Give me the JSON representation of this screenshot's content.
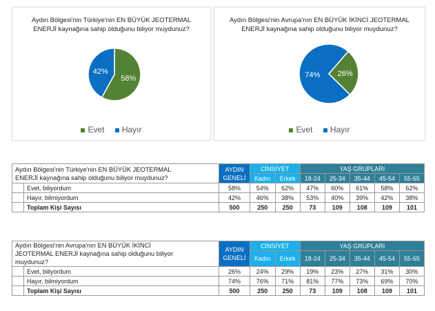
{
  "chart_data": [
    {
      "type": "pie",
      "title": "Aydın Bölgesi'nin Türkiye'nin EN BÜYÜK JEOTERMAL ENERJİ kaynağına sahip olduğunu biliyor muydunuz?",
      "title_lines": [
        "Aydın Bölgesi'nin Türkiye'nin EN BÜYÜK JEOTERMAL",
        "ENERJİ kaynağına sahip olduğunu biliyor muydunuz?"
      ],
      "categories": [
        "Evet",
        "Hayır"
      ],
      "values": [
        58,
        42
      ],
      "labels": [
        "58%",
        "42%"
      ],
      "colors": [
        "#548235",
        "#0a6fc2"
      ],
      "legend": "bottom"
    },
    {
      "type": "pie",
      "title": "Aydın Bölgesi'nin Avrupa'nın EN BÜYÜK İKİNCİ JEOTERMAL ENERJİ kaynağına sahip olduğunu biliyor muydunuz?",
      "title_lines": [
        "Aydın Bölgesi'nin Avrupa'nın EN BÜYÜK İKİNCİ JEOTERMAL",
        "ENERJİ kaynağına sahip olduğunu biliyor muydunuz?"
      ],
      "categories": [
        "Evet",
        "Hayır"
      ],
      "values": [
        26,
        74
      ],
      "labels": [
        "26%",
        "74%"
      ],
      "colors": [
        "#548235",
        "#0a6fc2"
      ],
      "legend": "bottom"
    }
  ],
  "tables": [
    {
      "question_lines": [
        "Aydın Bölgesi'nin Türkiye'nin EN BÜYÜK JEOTERMAL",
        "ENERJİ kaynağına sahip olduğunu biliyor muydunuz?"
      ],
      "headers": {
        "aydin": [
          "AYDIN",
          "GENELİ"
        ],
        "cinsiyet": "CİNSİYET",
        "yas": "YAŞ GRUPLARI",
        "sub": [
          "Kadın",
          "Erkek",
          "18-24",
          "25-34",
          "35-44",
          "45-54",
          "55-65"
        ]
      },
      "rows": [
        {
          "label": "Evet, biliyordum",
          "values": [
            "58%",
            "54%",
            "62%",
            "47%",
            "60%",
            "61%",
            "58%",
            "62%"
          ]
        },
        {
          "label": "Hayır, bilmiyordum",
          "values": [
            "42%",
            "46%",
            "38%",
            "53%",
            "40%",
            "39%",
            "42%",
            "38%"
          ]
        },
        {
          "label": "Toplam Kişi Sayısı",
          "values": [
            "500",
            "250",
            "250",
            "73",
            "109",
            "108",
            "109",
            "101"
          ]
        }
      ]
    },
    {
      "question_lines": [
        "Aydın Bölgesi'nin Avrupa'nın EN BÜYÜK İKİNCİ",
        "JEOTERMAL ENERJİ kaynağına sahip olduğunu biliyor",
        "muydunuz?"
      ],
      "headers": {
        "aydin": [
          "AYDIN",
          "GENELİ"
        ],
        "cinsiyet": "CİNSİYET",
        "yas": "YAŞ GRUPLARI",
        "sub": [
          "Kadın",
          "Erkek",
          "18-24",
          "25-34",
          "35-44",
          "45-54",
          "55-65"
        ]
      },
      "rows": [
        {
          "label": "Evet, biliyordum",
          "values": [
            "26%",
            "24%",
            "29%",
            "19%",
            "23%",
            "27%",
            "31%",
            "30%"
          ]
        },
        {
          "label": "Hayır, bilmiyordum",
          "values": [
            "74%",
            "76%",
            "71%",
            "81%",
            "77%",
            "73%",
            "69%",
            "70%"
          ]
        },
        {
          "label": "Toplam Kişi Sayısı",
          "values": [
            "500",
            "250",
            "250",
            "73",
            "109",
            "108",
            "109",
            "101"
          ]
        }
      ]
    }
  ]
}
